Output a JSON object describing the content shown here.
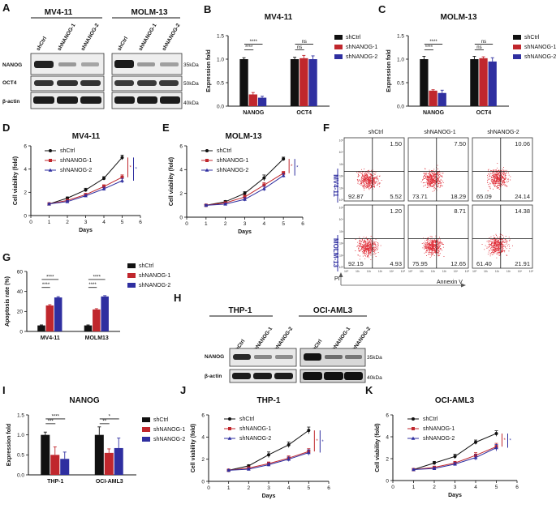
{
  "colors": {
    "shCtrl": "#111111",
    "shNANOG1": "#c0272d",
    "shNANOG2": "#2f2fa0",
    "dots": "#e0303a"
  },
  "panels": {
    "A": {
      "label": "A",
      "cell_lines": [
        "MV4-11",
        "MOLM-13"
      ],
      "lanes": [
        "shCtrl",
        "shNANOG-1",
        "shNANOG-2"
      ],
      "rows": [
        "NANOG",
        "OCT4",
        "β-actin"
      ],
      "markers": [
        "35kDa",
        "50kDa",
        "40kDa"
      ]
    },
    "B": {
      "label": "B"
    },
    "C": {
      "label": "C"
    },
    "D": {
      "label": "D"
    },
    "E": {
      "label": "E"
    },
    "F": {
      "label": "F"
    },
    "G": {
      "label": "G"
    },
    "H": {
      "label": "H",
      "cell_lines": [
        "THP-1",
        "OCI-AML3"
      ],
      "lanes": [
        "shCtrl",
        "shNANOG-1",
        "shNANOG-2"
      ],
      "rows": [
        "NANOG",
        "β-actin"
      ],
      "markers": [
        "35kDa",
        "40kDa"
      ]
    },
    "I": {
      "label": "I"
    },
    "J": {
      "label": "J"
    },
    "K": {
      "label": "K"
    }
  },
  "flow": {
    "columns": [
      "shCtrl",
      "shNANOG-1",
      "shNANOG-2"
    ],
    "rows": [
      "MV4-11",
      "MOLM-13"
    ],
    "xlabel": "Annexin V",
    "ylabel": "PI",
    "ticks": [
      "10⁰",
      "10¹",
      "10²",
      "10³",
      "10⁴",
      "10⁵"
    ],
    "quadrants": [
      [
        {
          "ul": "",
          "ur": "1.50",
          "ll": "92.87",
          "lr": "5.52"
        },
        {
          "ul": "",
          "ur": "7.50",
          "ll": "73.71",
          "lr": "18.29"
        },
        {
          "ul": "",
          "ur": "10.06",
          "ll": "65.09",
          "lr": "24.14"
        }
      ],
      [
        {
          "ul": "",
          "ur": "1.20",
          "ll": "92.15",
          "lr": "4.93"
        },
        {
          "ul": "",
          "ur": "8.71",
          "ll": "75.95",
          "lr": "12.65"
        },
        {
          "ul": "",
          "ur": "14.38",
          "ll": "61.40",
          "lr": "21.91"
        }
      ]
    ]
  },
  "chart_data": [
    {
      "id": "B",
      "type": "bar",
      "title": "MV4-11",
      "ylabel": "Expression fold",
      "ylim": [
        0,
        1.5
      ],
      "yticks": [
        "0.0",
        "0.5",
        "1.0",
        "1.5"
      ],
      "categories": [
        "NANOG",
        "OCT4"
      ],
      "series": [
        {
          "name": "shCtrl",
          "values": [
            1.0,
            1.0
          ],
          "err": [
            0.03,
            0.04
          ]
        },
        {
          "name": "shNANOG-1",
          "values": [
            0.25,
            1.02
          ],
          "err": [
            0.04,
            0.06
          ]
        },
        {
          "name": "shNANOG-2",
          "values": [
            0.18,
            1.0
          ],
          "err": [
            0.03,
            0.07
          ]
        }
      ],
      "annotations": [
        {
          "text": "****",
          "group": 0,
          "from": 0,
          "to": 2,
          "level": 1.32
        },
        {
          "text": "****",
          "group": 0,
          "from": 0,
          "to": 1,
          "level": 1.2
        },
        {
          "text": "ns",
          "group": 1,
          "from": 0,
          "to": 2,
          "level": 1.32
        },
        {
          "text": "ns",
          "group": 1,
          "from": 0,
          "to": 1,
          "level": 1.2
        }
      ]
    },
    {
      "id": "C",
      "type": "bar",
      "title": "MOLM-13",
      "ylabel": "Expression fold",
      "ylim": [
        0,
        1.5
      ],
      "yticks": [
        "0.0",
        "0.5",
        "1.0",
        "1.5"
      ],
      "categories": [
        "NANOG",
        "OCT4"
      ],
      "series": [
        {
          "name": "shCtrl",
          "values": [
            1.0,
            1.0
          ],
          "err": [
            0.06,
            0.06
          ]
        },
        {
          "name": "shNANOG-1",
          "values": [
            0.33,
            1.02
          ],
          "err": [
            0.02,
            0.03
          ]
        },
        {
          "name": "shNANOG-2",
          "values": [
            0.28,
            0.95
          ],
          "err": [
            0.06,
            0.08
          ]
        }
      ],
      "annotations": [
        {
          "text": "****",
          "group": 0,
          "from": 0,
          "to": 2,
          "level": 1.32
        },
        {
          "text": "****",
          "group": 0,
          "from": 0,
          "to": 1,
          "level": 1.2
        },
        {
          "text": "ns",
          "group": 1,
          "from": 0,
          "to": 2,
          "level": 1.32
        },
        {
          "text": "ns",
          "group": 1,
          "from": 0,
          "to": 1,
          "level": 1.2
        }
      ]
    },
    {
      "id": "D",
      "type": "line",
      "title": "MV4-11",
      "xlabel": "Days",
      "ylabel": "Cell viability (fold)",
      "xlim": [
        0,
        6
      ],
      "ylim": [
        0,
        6
      ],
      "xticks": [
        0,
        1,
        2,
        3,
        4,
        5,
        6
      ],
      "yticks": [
        0,
        2,
        4,
        6
      ],
      "x": [
        1,
        2,
        3,
        4,
        5
      ],
      "series": [
        {
          "name": "shCtrl",
          "values": [
            1.0,
            1.5,
            2.2,
            3.2,
            5.0
          ],
          "err": [
            0.05,
            0.1,
            0.15,
            0.15,
            0.2
          ]
        },
        {
          "name": "shNANOG-1",
          "values": [
            1.0,
            1.3,
            1.8,
            2.5,
            3.3
          ],
          "err": [
            0.05,
            0.1,
            0.1,
            0.15,
            0.2
          ]
        },
        {
          "name": "shNANOG-2",
          "values": [
            1.0,
            1.2,
            1.7,
            2.3,
            3.0
          ],
          "err": [
            0.05,
            0.1,
            0.1,
            0.15,
            0.2
          ]
        }
      ],
      "sig": [
        "*",
        "*"
      ]
    },
    {
      "id": "E",
      "type": "line",
      "title": "MOLM-13",
      "xlabel": "Days",
      "ylabel": "Cell viability (fold)",
      "xlim": [
        0,
        6
      ],
      "ylim": [
        0,
        6
      ],
      "xticks": [
        0,
        1,
        2,
        3,
        4,
        5,
        6
      ],
      "yticks": [
        0,
        2,
        4,
        6
      ],
      "x": [
        1,
        2,
        3,
        4,
        5
      ],
      "series": [
        {
          "name": "shCtrl",
          "values": [
            1.0,
            1.3,
            2.0,
            3.3,
            4.9
          ],
          "err": [
            0.05,
            0.1,
            0.15,
            0.25,
            0.15
          ]
        },
        {
          "name": "shNANOG-1",
          "values": [
            1.0,
            1.2,
            1.7,
            2.7,
            3.7
          ],
          "err": [
            0.05,
            0.1,
            0.15,
            0.2,
            0.15
          ]
        },
        {
          "name": "shNANOG-2",
          "values": [
            1.0,
            1.1,
            1.5,
            2.4,
            3.5
          ],
          "err": [
            0.05,
            0.1,
            0.15,
            0.2,
            0.15
          ]
        }
      ],
      "sig": [
        "*",
        "*"
      ]
    },
    {
      "id": "G",
      "type": "bar",
      "title": "",
      "ylabel": "Apoptosis rate (%)",
      "ylim": [
        0,
        60
      ],
      "yticks": [
        "0",
        "20",
        "40",
        "60"
      ],
      "categories": [
        "MV4-11",
        "MOLM13"
      ],
      "series": [
        {
          "name": "shCtrl",
          "values": [
            6,
            6
          ],
          "err": [
            0.5,
            0.5
          ]
        },
        {
          "name": "shNANOG-1",
          "values": [
            26,
            22
          ],
          "err": [
            0.8,
            0.8
          ]
        },
        {
          "name": "shNANOG-2",
          "values": [
            34,
            35
          ],
          "err": [
            0.8,
            0.8
          ]
        }
      ],
      "annotations": [
        {
          "text": "****",
          "group": 0,
          "from": 0,
          "to": 2,
          "level": 52
        },
        {
          "text": "****",
          "group": 0,
          "from": 0,
          "to": 1,
          "level": 44
        },
        {
          "text": "****",
          "group": 1,
          "from": 0,
          "to": 2,
          "level": 52
        },
        {
          "text": "****",
          "group": 1,
          "from": 0,
          "to": 1,
          "level": 44
        }
      ]
    },
    {
      "id": "I",
      "type": "bar",
      "title": "NANOG",
      "ylabel": "Expression fold",
      "ylim": [
        0,
        1.5
      ],
      "yticks": [
        "0.0",
        "0.5",
        "1.0",
        "1.5"
      ],
      "categories": [
        "THP-1",
        "OCI-AML3"
      ],
      "series": [
        {
          "name": "shCtrl",
          "values": [
            1.0,
            1.0
          ],
          "err": [
            0.07,
            0.2
          ]
        },
        {
          "name": "shNANOG-1",
          "values": [
            0.5,
            0.55
          ],
          "err": [
            0.2,
            0.1
          ]
        },
        {
          "name": "shNANOG-2",
          "values": [
            0.4,
            0.67
          ],
          "err": [
            0.17,
            0.25
          ]
        }
      ],
      "annotations": [
        {
          "text": "****",
          "group": 0,
          "from": 0,
          "to": 2,
          "level": 1.4
        },
        {
          "text": "***",
          "group": 0,
          "from": 0,
          "to": 1,
          "level": 1.28
        },
        {
          "text": "*",
          "group": 1,
          "from": 0,
          "to": 2,
          "level": 1.4
        },
        {
          "text": "**",
          "group": 1,
          "from": 0,
          "to": 1,
          "level": 1.28
        }
      ]
    },
    {
      "id": "J",
      "type": "line",
      "title": "THP-1",
      "xlabel": "Days",
      "ylabel": "Cell viability (fold)",
      "xlim": [
        0,
        6
      ],
      "ylim": [
        0,
        6
      ],
      "xticks": [
        0,
        1,
        2,
        3,
        4,
        5,
        6
      ],
      "yticks": [
        0,
        2,
        4,
        6
      ],
      "x": [
        1,
        2,
        3,
        4,
        5
      ],
      "series": [
        {
          "name": "shCtrl",
          "values": [
            1.0,
            1.4,
            2.4,
            3.3,
            4.6
          ],
          "err": [
            0.05,
            0.1,
            0.25,
            0.25,
            0.3
          ]
        },
        {
          "name": "shNANOG-1",
          "values": [
            1.0,
            1.2,
            1.6,
            2.1,
            2.7
          ],
          "err": [
            0.05,
            0.1,
            0.15,
            0.2,
            0.25
          ]
        },
        {
          "name": "shNANOG-2",
          "values": [
            1.0,
            1.1,
            1.5,
            2.0,
            2.6
          ],
          "err": [
            0.05,
            0.1,
            0.15,
            0.2,
            0.25
          ]
        }
      ],
      "sig": [
        "*",
        "*"
      ]
    },
    {
      "id": "K",
      "type": "line",
      "title": "OCI-AML3",
      "xlabel": "Days",
      "ylabel": "Cell viability (fold)",
      "xlim": [
        0,
        6
      ],
      "ylim": [
        0,
        6
      ],
      "xticks": [
        0,
        1,
        2,
        3,
        4,
        5,
        6
      ],
      "yticks": [
        0,
        2,
        4,
        6
      ],
      "x": [
        1,
        2,
        3,
        4,
        5
      ],
      "series": [
        {
          "name": "shCtrl",
          "values": [
            1.0,
            1.6,
            2.2,
            3.5,
            4.3
          ],
          "err": [
            0.05,
            0.15,
            0.2,
            0.2,
            0.25
          ]
        },
        {
          "name": "shNANOG-1",
          "values": [
            1.0,
            1.2,
            1.6,
            2.3,
            3.1
          ],
          "err": [
            0.05,
            0.1,
            0.15,
            0.25,
            0.3
          ]
        },
        {
          "name": "shNANOG-2",
          "values": [
            1.0,
            1.1,
            1.5,
            2.1,
            3.0
          ],
          "err": [
            0.05,
            0.1,
            0.15,
            0.25,
            0.3
          ]
        }
      ],
      "sig": [
        "*",
        "*"
      ]
    }
  ]
}
